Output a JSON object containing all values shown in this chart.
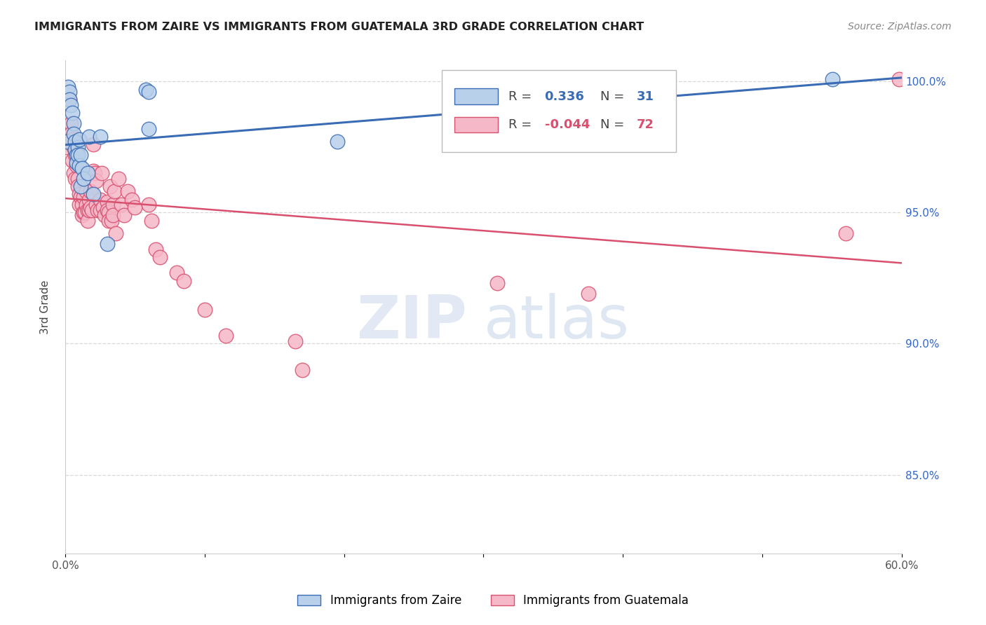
{
  "title": "IMMIGRANTS FROM ZAIRE VS IMMIGRANTS FROM GUATEMALA 3RD GRADE CORRELATION CHART",
  "source_text": "Source: ZipAtlas.com",
  "ylabel": "3rd Grade",
  "x_min": 0.0,
  "x_max": 0.6,
  "y_min": 0.82,
  "y_max": 1.008,
  "x_ticks": [
    0.0,
    0.1,
    0.2,
    0.3,
    0.4,
    0.5,
    0.6
  ],
  "x_tick_labels": [
    "0.0%",
    "",
    "",
    "",
    "",
    "",
    "60.0%"
  ],
  "y_ticks": [
    0.85,
    0.9,
    0.95,
    1.0
  ],
  "y_tick_labels": [
    "85.0%",
    "90.0%",
    "95.0%",
    "100.0%"
  ],
  "grid_color": "#d8d8d8",
  "background_color": "#ffffff",
  "zaire_color": "#b8d0ea",
  "guatemala_color": "#f5b8c8",
  "zaire_line_color": "#3a6cb5",
  "guatemala_line_color": "#d94f6e",
  "R_zaire": 0.336,
  "N_zaire": 31,
  "R_guatemala": -0.044,
  "N_guatemala": 72,
  "legend_label_zaire": "Immigrants from Zaire",
  "legend_label_guatemala": "Immigrants from Guatemala",
  "watermark_zip": "ZIP",
  "watermark_atlas": "atlas",
  "zaire_scatter_x": [
    0.001,
    0.002,
    0.003,
    0.003,
    0.004,
    0.005,
    0.006,
    0.006,
    0.007,
    0.007,
    0.008,
    0.008,
    0.009,
    0.009,
    0.01,
    0.01,
    0.011,
    0.011,
    0.012,
    0.013,
    0.016,
    0.017,
    0.02,
    0.025,
    0.03,
    0.058,
    0.06,
    0.06,
    0.195,
    0.32,
    0.55
  ],
  "zaire_scatter_y": [
    0.977,
    0.998,
    0.996,
    0.993,
    0.991,
    0.988,
    0.984,
    0.98,
    0.977,
    0.974,
    0.972,
    0.969,
    0.975,
    0.972,
    0.978,
    0.968,
    0.972,
    0.96,
    0.967,
    0.963,
    0.965,
    0.979,
    0.957,
    0.979,
    0.938,
    0.997,
    0.996,
    0.982,
    0.977,
    0.99,
    1.001
  ],
  "guatemala_scatter_x": [
    0.001,
    0.002,
    0.003,
    0.004,
    0.004,
    0.005,
    0.005,
    0.006,
    0.006,
    0.007,
    0.007,
    0.008,
    0.009,
    0.009,
    0.01,
    0.01,
    0.011,
    0.012,
    0.012,
    0.013,
    0.013,
    0.014,
    0.015,
    0.015,
    0.016,
    0.016,
    0.017,
    0.017,
    0.018,
    0.018,
    0.019,
    0.02,
    0.02,
    0.021,
    0.022,
    0.022,
    0.023,
    0.025,
    0.025,
    0.026,
    0.027,
    0.028,
    0.03,
    0.03,
    0.031,
    0.031,
    0.032,
    0.033,
    0.034,
    0.034,
    0.035,
    0.036,
    0.038,
    0.04,
    0.042,
    0.045,
    0.048,
    0.05,
    0.06,
    0.062,
    0.065,
    0.068,
    0.08,
    0.085,
    0.1,
    0.115,
    0.165,
    0.17,
    0.31,
    0.375,
    0.56,
    0.598
  ],
  "guatemala_scatter_y": [
    0.975,
    0.983,
    0.993,
    0.984,
    0.98,
    0.978,
    0.97,
    0.975,
    0.965,
    0.972,
    0.963,
    0.968,
    0.963,
    0.96,
    0.957,
    0.953,
    0.956,
    0.953,
    0.949,
    0.956,
    0.95,
    0.95,
    0.958,
    0.953,
    0.951,
    0.947,
    0.955,
    0.951,
    0.958,
    0.952,
    0.951,
    0.976,
    0.966,
    0.965,
    0.962,
    0.953,
    0.951,
    0.955,
    0.951,
    0.965,
    0.952,
    0.949,
    0.954,
    0.951,
    0.95,
    0.947,
    0.96,
    0.947,
    0.953,
    0.949,
    0.958,
    0.942,
    0.963,
    0.953,
    0.949,
    0.958,
    0.955,
    0.952,
    0.953,
    0.947,
    0.936,
    0.933,
    0.927,
    0.924,
    0.913,
    0.903,
    0.901,
    0.89,
    0.923,
    0.919,
    0.942,
    1.001
  ]
}
